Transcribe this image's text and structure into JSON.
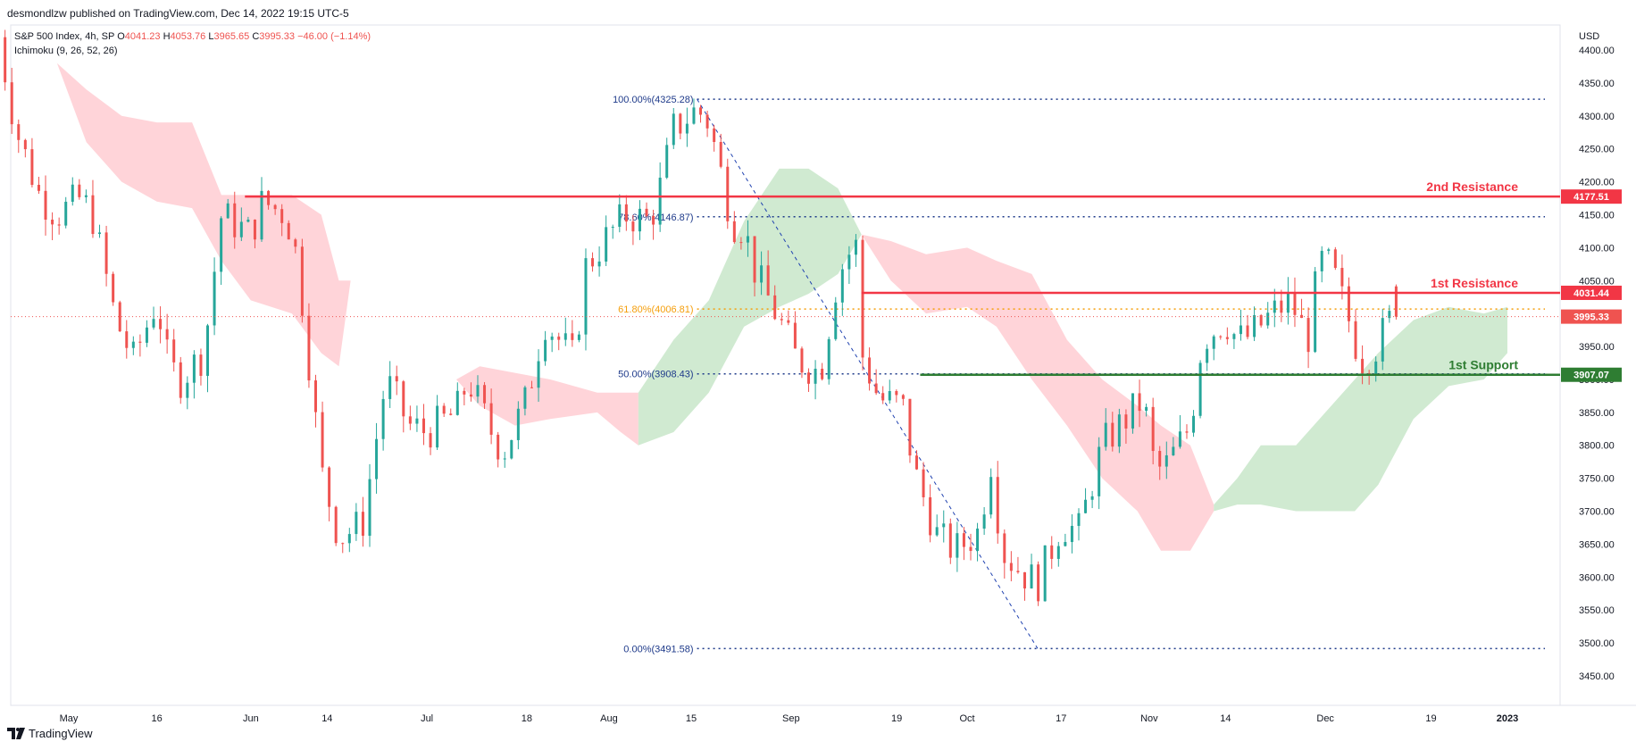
{
  "header": {
    "published": "desmondlzw published on TradingView.com, Dec 14, 2022 19:15 UTC-5",
    "symbol": "S&P 500 Index, 4h, SP",
    "open_label": "O",
    "open": "4041.23",
    "high_label": "H",
    "high": "4053.76",
    "low_label": "L",
    "low": "3965.65",
    "close_label": "C",
    "close": "3995.33",
    "change": "−46.00 (−1.14%)",
    "indicator": "Ichimoku (9, 26, 52, 26)",
    "currency": "USD"
  },
  "brand": {
    "name": "TradingView",
    "icon": "tradingview-logo-icon"
  },
  "colors": {
    "up": "#26a69a",
    "down": "#ef5350",
    "cloud_bull": "#c8e6c9",
    "cloud_bear": "#ffcdd2",
    "resistance": "#f23645",
    "support": "#2e7d32",
    "fib_blue": "#1e3a8a",
    "fib_orange": "#f59e0b",
    "grid": "#e0e3eb"
  },
  "chart_data": {
    "type": "candlestick",
    "title": "",
    "y_axis": {
      "ticks": [
        4400,
        4350,
        4300,
        4250,
        4200,
        4150,
        4100,
        4050,
        4000,
        3950,
        3900,
        3850,
        3800,
        3750,
        3700,
        3650,
        3600,
        3550,
        3500,
        3450
      ],
      "range": [
        3420,
        4420
      ]
    },
    "x_axis": {
      "ticks": [
        {
          "label": "May",
          "date": "2022-05-01"
        },
        {
          "label": "16",
          "date": "2022-05-16"
        },
        {
          "label": "Jun",
          "date": "2022-06-01"
        },
        {
          "label": "14",
          "date": "2022-06-14"
        },
        {
          "label": "Jul",
          "date": "2022-07-01"
        },
        {
          "label": "18",
          "date": "2022-07-18"
        },
        {
          "label": "Aug",
          "date": "2022-08-01"
        },
        {
          "label": "15",
          "date": "2022-08-15"
        },
        {
          "label": "Sep",
          "date": "2022-09-01"
        },
        {
          "label": "19",
          "date": "2022-09-19"
        },
        {
          "label": "Oct",
          "date": "2022-10-01"
        },
        {
          "label": "17",
          "date": "2022-10-17"
        },
        {
          "label": "Nov",
          "date": "2022-11-01"
        },
        {
          "label": "14",
          "date": "2022-11-14"
        },
        {
          "label": "Dec",
          "date": "2022-12-01"
        },
        {
          "label": "19",
          "date": "2022-12-19"
        },
        {
          "label": "2023",
          "date": "2023-01-01"
        }
      ]
    },
    "price_path": [
      [
        "2022-04-19",
        4420
      ],
      [
        "2022-04-22",
        4280
      ],
      [
        "2022-04-26",
        4180
      ],
      [
        "2022-04-29",
        4150
      ],
      [
        "2022-05-03",
        4175
      ],
      [
        "2022-05-05",
        4150
      ],
      [
        "2022-05-09",
        3990
      ],
      [
        "2022-05-12",
        3930
      ],
      [
        "2022-05-16",
        4020
      ],
      [
        "2022-05-18",
        3920
      ],
      [
        "2022-05-20",
        3900
      ],
      [
        "2022-05-24",
        3940
      ],
      [
        "2022-05-27",
        4150
      ],
      [
        "2022-06-01",
        4120
      ],
      [
        "2022-06-03",
        4170
      ],
      [
        "2022-06-07",
        4150
      ],
      [
        "2022-06-09",
        4080
      ],
      [
        "2022-06-13",
        3760
      ],
      [
        "2022-06-16",
        3660
      ],
      [
        "2022-06-20",
        3680
      ],
      [
        "2022-06-24",
        3900
      ],
      [
        "2022-06-28",
        3830
      ],
      [
        "2022-07-01",
        3820
      ],
      [
        "2022-07-06",
        3850
      ],
      [
        "2022-07-08",
        3900
      ],
      [
        "2022-07-12",
        3820
      ],
      [
        "2022-07-14",
        3790
      ],
      [
        "2022-07-18",
        3870
      ],
      [
        "2022-07-21",
        3990
      ],
      [
        "2022-07-26",
        3930
      ],
      [
        "2022-07-28",
        4070
      ],
      [
        "2022-08-01",
        4120
      ],
      [
        "2022-08-04",
        4150
      ],
      [
        "2022-08-08",
        4140
      ],
      [
        "2022-08-10",
        4200
      ],
      [
        "2022-08-12",
        4280
      ],
      [
        "2022-08-16",
        4310
      ],
      [
        "2022-08-18",
        4290
      ],
      [
        "2022-08-22",
        4140
      ],
      [
        "2022-08-24",
        4130
      ],
      [
        "2022-08-26",
        4060
      ],
      [
        "2022-08-30",
        3990
      ],
      [
        "2022-09-02",
        3930
      ],
      [
        "2022-09-06",
        3910
      ],
      [
        "2022-09-09",
        4060
      ],
      [
        "2022-09-12",
        4110
      ],
      [
        "2022-09-13",
        3940
      ],
      [
        "2022-09-16",
        3870
      ],
      [
        "2022-09-20",
        3860
      ],
      [
        "2022-09-22",
        3760
      ],
      [
        "2022-09-26",
        3660
      ],
      [
        "2022-09-29",
        3640
      ],
      [
        "2022-10-03",
        3670
      ],
      [
        "2022-10-05",
        3780
      ],
      [
        "2022-10-07",
        3640
      ],
      [
        "2022-10-10",
        3610
      ],
      [
        "2022-10-13",
        3590
      ],
      [
        "2022-10-17",
        3680
      ],
      [
        "2022-10-20",
        3670
      ],
      [
        "2022-10-24",
        3800
      ],
      [
        "2022-10-27",
        3830
      ],
      [
        "2022-10-31",
        3870
      ],
      [
        "2022-11-02",
        3760
      ],
      [
        "2022-11-04",
        3770
      ],
      [
        "2022-11-08",
        3830
      ],
      [
        "2022-11-10",
        3960
      ],
      [
        "2022-11-14",
        3990
      ],
      [
        "2022-11-16",
        3960
      ],
      [
        "2022-11-18",
        3965
      ],
      [
        "2022-11-22",
        4000
      ],
      [
        "2022-11-25",
        4020
      ],
      [
        "2022-11-28",
        3960
      ],
      [
        "2022-11-30",
        4080
      ],
      [
        "2022-12-02",
        4070
      ],
      [
        "2022-12-05",
        3990
      ],
      [
        "2022-12-07",
        3930
      ],
      [
        "2022-12-09",
        3940
      ],
      [
        "2022-12-12",
        3990
      ],
      [
        "2022-12-13",
        4019
      ],
      [
        "2022-12-14",
        3995.33
      ]
    ],
    "cloud_bear_segments": [
      [
        [
          "2022-04-29",
          4380,
          4380
        ],
        [
          "2022-05-04",
          4340,
          4260
        ],
        [
          "2022-05-10",
          4300,
          4200
        ],
        [
          "2022-05-16",
          4290,
          4170
        ],
        [
          "2022-05-22",
          4290,
          4160
        ],
        [
          "2022-05-27",
          4180,
          4080
        ],
        [
          "2022-06-01",
          4180,
          4020
        ],
        [
          "2022-06-08",
          4180,
          4000
        ],
        [
          "2022-06-13",
          4150,
          3940
        ],
        [
          "2022-06-16",
          4050,
          3920
        ],
        [
          "2022-06-18",
          4050,
          4050
        ]
      ],
      [
        [
          "2022-07-06",
          3900,
          3900
        ],
        [
          "2022-07-10",
          3920,
          3860
        ],
        [
          "2022-07-16",
          3910,
          3830
        ],
        [
          "2022-07-22",
          3900,
          3840
        ],
        [
          "2022-07-30",
          3880,
          3850
        ],
        [
          "2022-08-03",
          3880,
          3820
        ],
        [
          "2022-08-06",
          3880,
          3800
        ]
      ],
      [
        [
          "2022-09-13",
          4120,
          4120
        ],
        [
          "2022-09-18",
          4110,
          4050
        ],
        [
          "2022-09-24",
          4090,
          4000
        ],
        [
          "2022-10-01",
          4100,
          4010
        ],
        [
          "2022-10-06",
          4080,
          3980
        ],
        [
          "2022-10-12",
          4060,
          3900
        ],
        [
          "2022-10-18",
          3960,
          3830
        ],
        [
          "2022-10-24",
          3900,
          3750
        ],
        [
          "2022-10-30",
          3860,
          3700
        ],
        [
          "2022-11-03",
          3830,
          3640
        ],
        [
          "2022-11-08",
          3800,
          3640
        ],
        [
          "2022-11-12",
          3710,
          3700
        ]
      ]
    ],
    "cloud_bull_segments": [
      [
        [
          "2022-08-06",
          3800,
          3880
        ],
        [
          "2022-08-12",
          3820,
          3960
        ],
        [
          "2022-08-18",
          3880,
          4020
        ],
        [
          "2022-08-24",
          3980,
          4140
        ],
        [
          "2022-08-30",
          4010,
          4220
        ],
        [
          "2022-09-04",
          4030,
          4220
        ],
        [
          "2022-09-09",
          4060,
          4190
        ],
        [
          "2022-09-13",
          4120,
          4120
        ]
      ],
      [
        [
          "2022-11-12",
          3700,
          3710
        ],
        [
          "2022-11-16",
          3710,
          3750
        ],
        [
          "2022-11-20",
          3710,
          3800
        ],
        [
          "2022-11-26",
          3700,
          3800
        ],
        [
          "2022-12-02",
          3700,
          3860
        ],
        [
          "2022-12-06",
          3700,
          3900
        ],
        [
          "2022-12-10",
          3740,
          3940
        ],
        [
          "2022-12-16",
          3840,
          3990
        ],
        [
          "2022-12-22",
          3890,
          4010
        ],
        [
          "2022-12-28",
          3900,
          4000
        ],
        [
          "2023-01-01",
          3940,
          4010
        ]
      ]
    ],
    "fib_levels": [
      {
        "label": "100.00%(4325.28)",
        "price": 4325.28,
        "color": "#1e3a8a"
      },
      {
        "label": "78.60%(4146.87)",
        "price": 4146.87,
        "color": "#1e3a8a"
      },
      {
        "label": "61.80%(4006.81)",
        "price": 4006.81,
        "color": "#f59e0b"
      },
      {
        "label": "50.00%(3908.43)",
        "price": 3908.43,
        "color": "#1e3a8a"
      },
      {
        "label": "0.00%(3491.58)",
        "price": 3491.58,
        "color": "#1e3a8a"
      }
    ],
    "fib_trend": {
      "from": [
        "2022-08-16",
        4325.28
      ],
      "to": [
        "2022-10-13",
        3491.58
      ]
    },
    "levels": [
      {
        "name": "2nd Resistance",
        "price": 4177.51,
        "price_label": "4177.51",
        "from": "2022-05-31",
        "color": "#f23645"
      },
      {
        "name": "1st Resistance",
        "price": 4031.44,
        "price_label": "4031.44",
        "from": "2022-09-13",
        "color": "#f23645"
      },
      {
        "name": "1st Support",
        "price": 3907.07,
        "price_label": "3907.07",
        "from": "2022-09-23",
        "color": "#2e7d32"
      }
    ],
    "last_price": {
      "price": 3995.33,
      "label": "3995.33",
      "color": "#ef5350"
    }
  }
}
